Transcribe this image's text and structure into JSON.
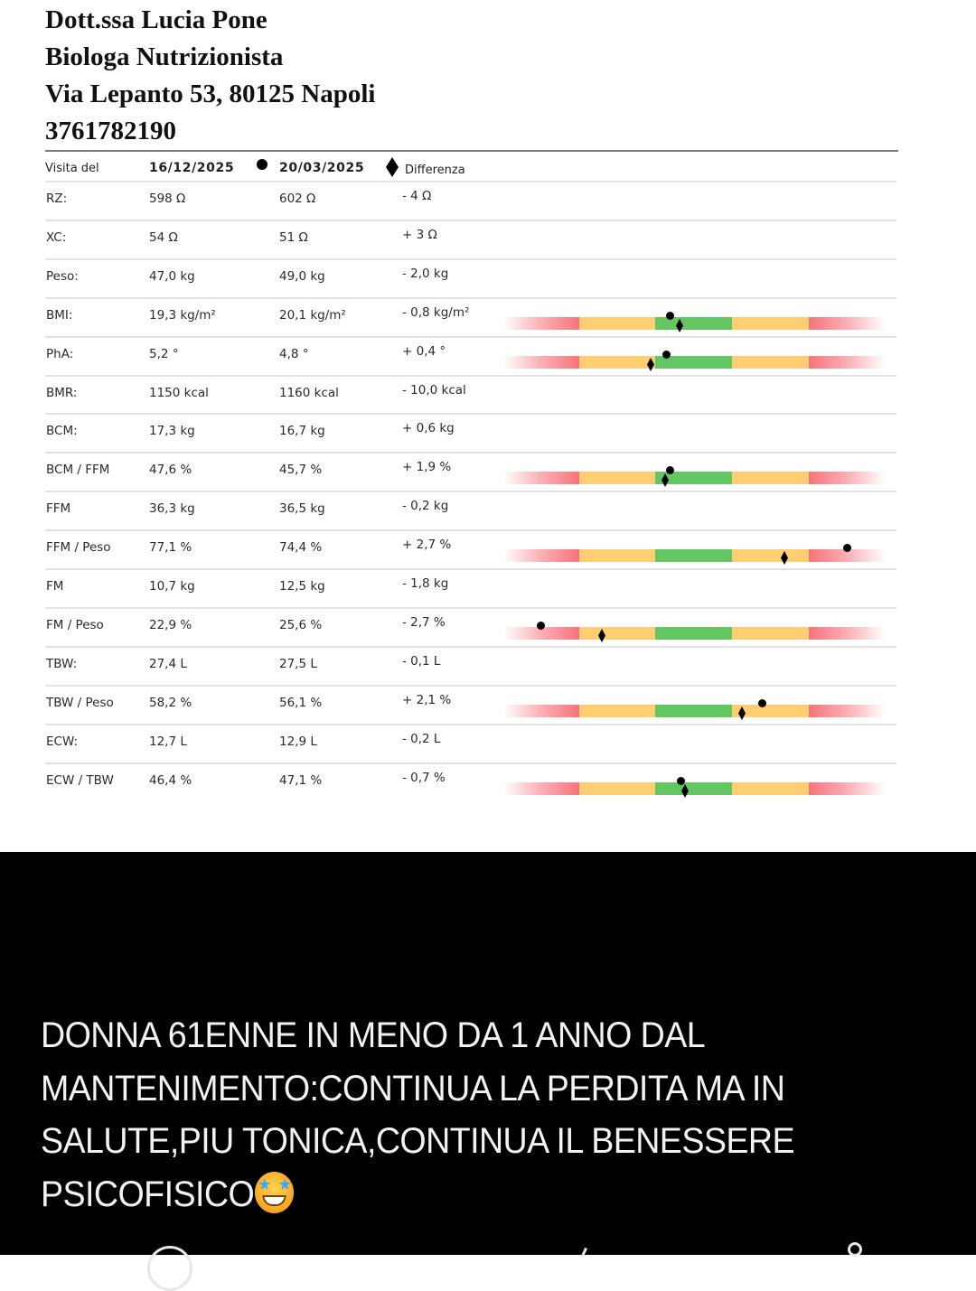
{
  "header": {
    "name": "Dott.ssa Lucia Pone",
    "title": "Biologa Nutrizionista",
    "address": "Via Lepanto 53, 80125 Napoli",
    "phone": "3761782190"
  },
  "table": {
    "columns": {
      "visit_label": "Visita del",
      "date1": "16/12/2025",
      "date1_marker": "dot",
      "date2": "20/03/2025",
      "date2_marker": "diamond",
      "diff_label": "Differenza"
    },
    "rows": [
      {
        "label": "RZ:",
        "v1": "598 Ω",
        "v2": "602 Ω",
        "diff": "- 4 Ω",
        "bar": null
      },
      {
        "label": "XC:",
        "v1": "54 Ω",
        "v2": "51 Ω",
        "diff": "+ 3 Ω",
        "bar": null
      },
      {
        "label": "Peso:",
        "v1": "47,0 kg",
        "v2": "49,0 kg",
        "diff": "- 2,0 kg",
        "bar": null
      },
      {
        "label": "BMI:",
        "v1": "19,3 kg/m²",
        "v2": "20,1 kg/m²",
        "diff": "- 0,8 kg/m²",
        "bar": {
          "dot": 184,
          "diamond": 195
        }
      },
      {
        "label": "PhA:",
        "v1": "5,2 °",
        "v2": "4,8 °",
        "diff": "+ 0,4 °",
        "bar": {
          "dot": 180,
          "diamond": 163
        }
      },
      {
        "label": "BMR:",
        "v1": "1150 kcal",
        "v2": "1160 kcal",
        "diff": "- 10,0 kcal",
        "bar": null
      },
      {
        "label": "BCM:",
        "v1": "17,3 kg",
        "v2": "16,7 kg",
        "diff": "+ 0,6 kg",
        "bar": null
      },
      {
        "label": "BCM / FFM",
        "v1": "47,6 %",
        "v2": "45,7 %",
        "diff": "+ 1,9 %",
        "bar": {
          "dot": 184,
          "diamond": 179
        }
      },
      {
        "label": "FFM",
        "v1": "36,3 kg",
        "v2": "36,5 kg",
        "diff": "- 0,2 kg",
        "bar": null
      },
      {
        "label": "FFM / Peso",
        "v1": "77,1 %",
        "v2": "74,4 %",
        "diff": "+ 2,7 %",
        "bar": {
          "dot": 380,
          "diamond": 311
        }
      },
      {
        "label": "FM",
        "v1": "10,7 kg",
        "v2": "12,5 kg",
        "diff": "- 1,8 kg",
        "bar": null
      },
      {
        "label": "FM / Peso",
        "v1": "22,9 %",
        "v2": "25,6 %",
        "diff": "- 2,7 %",
        "bar": {
          "dot": 41,
          "diamond": 109
        }
      },
      {
        "label": "TBW:",
        "v1": "27,4 L",
        "v2": "27,5 L",
        "diff": "- 0,1 L",
        "bar": null
      },
      {
        "label": "TBW / Peso",
        "v1": "58,2 %",
        "v2": "56,1 %",
        "diff": "+ 2,1 %",
        "bar": {
          "dot": 286,
          "diamond": 264
        }
      },
      {
        "label": "ECW:",
        "v1": "12,7 L",
        "v2": "12,9 L",
        "diff": "- 0,2 L",
        "bar": null
      },
      {
        "label": "ECW / TBW",
        "v1": "46,4 %",
        "v2": "47,1 %",
        "diff": "- 0,7 %",
        "bar": {
          "dot": 196,
          "diamond": 201
        }
      }
    ],
    "bar_colors": {
      "red": "#f7737c",
      "yellow": "#fdcf72",
      "green": "#63c662"
    }
  },
  "caption": {
    "text": "DONNA 61ENNE IN MENO DA 1 ANNO DAL MANTENIMENTO:CONTINUA LA PERDITA MA IN SALUTE,PIU TONICA,CONTINUA IL BENESSERE PSICOFISICO",
    "emoji": "star-struck-emoji"
  }
}
